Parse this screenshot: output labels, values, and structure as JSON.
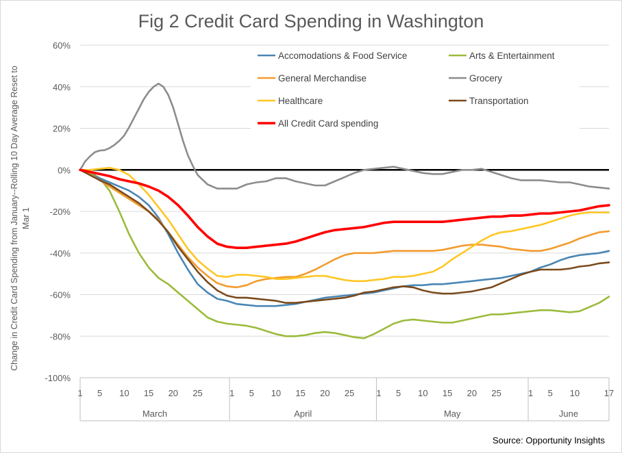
{
  "chart_data": {
    "type": "line",
    "title": "Fig 2 Credit Card Spending in Washington",
    "ylabel_lines": [
      "Change in Credit Card Spending  from January--Rolling 10 Day Average Reset to",
      "Mar 1"
    ],
    "ylim": [
      -100,
      60
    ],
    "yticks": [
      60,
      40,
      20,
      0,
      -20,
      -40,
      -60,
      -80,
      -100
    ],
    "ytick_labels": [
      "60%",
      "40%",
      "20%",
      "0%",
      "-20%",
      "-40%",
      "-60%",
      "-80%",
      "-100%"
    ],
    "x_day_range": [
      1,
      109
    ],
    "x_tick_labels": [
      {
        "day": 1,
        "label": "1"
      },
      {
        "day": 5,
        "label": "5"
      },
      {
        "day": 10,
        "label": "10"
      },
      {
        "day": 15,
        "label": "15"
      },
      {
        "day": 20,
        "label": "20"
      },
      {
        "day": 25,
        "label": "25"
      },
      {
        "day": 32,
        "label": "1"
      },
      {
        "day": 36,
        "label": "5"
      },
      {
        "day": 41,
        "label": "10"
      },
      {
        "day": 46,
        "label": "15"
      },
      {
        "day": 51,
        "label": "20"
      },
      {
        "day": 56,
        "label": "25"
      },
      {
        "day": 62,
        "label": "1"
      },
      {
        "day": 66,
        "label": "5"
      },
      {
        "day": 71,
        "label": "10"
      },
      {
        "day": 76,
        "label": "15"
      },
      {
        "day": 81,
        "label": "20"
      },
      {
        "day": 86,
        "label": "25"
      },
      {
        "day": 93,
        "label": "1"
      },
      {
        "day": 97,
        "label": "5"
      },
      {
        "day": 102,
        "label": "10"
      },
      {
        "day": 109,
        "label": "17"
      }
    ],
    "months": [
      {
        "label": "March",
        "start": 1,
        "end": 31
      },
      {
        "label": "April",
        "start": 32,
        "end": 61
      },
      {
        "label": "May",
        "start": 62,
        "end": 92
      },
      {
        "label": "June",
        "start": 93,
        "end": 109
      }
    ],
    "grid": true,
    "zero_line": true,
    "legend": "top-right",
    "source": "Source: Opportunity Insights",
    "series": [
      {
        "name": "Accomodations & Food Service",
        "color": "#4a86b4",
        "width": 2.6,
        "x": [
          1,
          3,
          5,
          7,
          9,
          11,
          13,
          15,
          17,
          19,
          21,
          23,
          25,
          27,
          29,
          31,
          33,
          35,
          37,
          39,
          41,
          43,
          45,
          47,
          49,
          51,
          53,
          55,
          57,
          59,
          61,
          63,
          65,
          67,
          69,
          71,
          73,
          75,
          77,
          79,
          81,
          83,
          85,
          87,
          89,
          91,
          93,
          95,
          97,
          99,
          101,
          103,
          105,
          107,
          109
        ],
        "y": [
          0,
          -2,
          -4,
          -6,
          -8,
          -10,
          -13,
          -17,
          -23,
          -31,
          -40,
          -48,
          -55,
          -59,
          -62,
          -63,
          -64.5,
          -65,
          -65.5,
          -65.5,
          -65.5,
          -65,
          -64.5,
          -63.5,
          -62.5,
          -61.5,
          -61,
          -60.5,
          -60,
          -59.5,
          -59,
          -58,
          -57,
          -56,
          -55.5,
          -55.5,
          -55,
          -55,
          -54.5,
          -54,
          -53.5,
          -53,
          -52.5,
          -52,
          -51,
          -50,
          -49,
          -47,
          -45.5,
          -43.5,
          -42,
          -41,
          -40.5,
          -40,
          -39
        ]
      },
      {
        "name": "Arts & Entertainment",
        "color": "#9bbb3b",
        "width": 2.6,
        "x": [
          1,
          3,
          5,
          7,
          9,
          11,
          13,
          15,
          17,
          19,
          21,
          23,
          25,
          27,
          29,
          31,
          33,
          35,
          37,
          39,
          41,
          43,
          45,
          47,
          49,
          51,
          53,
          55,
          57,
          59,
          61,
          63,
          65,
          67,
          69,
          71,
          73,
          75,
          77,
          79,
          81,
          83,
          85,
          87,
          89,
          91,
          93,
          95,
          97,
          99,
          101,
          103,
          105,
          107,
          109
        ],
        "y": [
          0,
          -1,
          -4,
          -10,
          -20,
          -31,
          -40,
          -47,
          -52,
          -55,
          -59,
          -63,
          -67,
          -71,
          -73,
          -74,
          -74.5,
          -75,
          -76,
          -77.5,
          -79,
          -80,
          -80,
          -79.5,
          -78.5,
          -78,
          -78.5,
          -79.5,
          -80.5,
          -81,
          -79,
          -76.5,
          -74,
          -72.5,
          -72,
          -72.5,
          -73,
          -73.5,
          -73.5,
          -72.5,
          -71.5,
          -70.5,
          -69.5,
          -69.5,
          -69,
          -68.5,
          -68,
          -67.5,
          -67.5,
          -68,
          -68.5,
          -68,
          -66,
          -64,
          -61
        ]
      },
      {
        "name": "General Merchandise",
        "color": "#f29b2d",
        "width": 2.6,
        "x": [
          1,
          3,
          5,
          7,
          9,
          11,
          13,
          15,
          17,
          19,
          21,
          23,
          25,
          27,
          29,
          31,
          33,
          35,
          37,
          39,
          41,
          43,
          45,
          47,
          49,
          51,
          53,
          55,
          57,
          59,
          61,
          63,
          65,
          67,
          69,
          71,
          73,
          75,
          77,
          79,
          81,
          83,
          85,
          87,
          89,
          91,
          93,
          95,
          97,
          99,
          101,
          103,
          105,
          107,
          109
        ],
        "y": [
          0,
          -2,
          -5,
          -8,
          -11,
          -14,
          -17,
          -20,
          -24,
          -30,
          -36,
          -42,
          -47,
          -51,
          -54.5,
          -56,
          -56.5,
          -55.5,
          -53.5,
          -52.5,
          -52,
          -51.5,
          -51.5,
          -50,
          -48,
          -45.5,
          -43,
          -41,
          -40,
          -40,
          -40,
          -39.5,
          -39,
          -39,
          -39,
          -39,
          -39,
          -38.5,
          -37.5,
          -36.5,
          -36,
          -36,
          -36.5,
          -37,
          -38,
          -38.5,
          -39,
          -39,
          -38,
          -36.5,
          -35,
          -33,
          -31.5,
          -30,
          -29.5
        ]
      },
      {
        "name": "Grocery",
        "color": "#8c8c8c",
        "width": 2.6,
        "x": [
          1,
          2,
          3,
          4,
          5,
          6,
          7,
          8,
          9,
          10,
          11,
          12,
          13,
          14,
          15,
          16,
          17,
          18,
          19,
          20,
          21,
          22,
          23,
          24,
          25,
          27,
          29,
          31,
          33,
          35,
          37,
          39,
          41,
          43,
          45,
          47,
          49,
          51,
          53,
          55,
          57,
          59,
          61,
          63,
          65,
          67,
          69,
          71,
          73,
          75,
          77,
          79,
          81,
          83,
          85,
          87,
          89,
          91,
          93,
          95,
          97,
          99,
          101,
          103,
          105,
          107,
          109
        ],
        "y": [
          0,
          4,
          6.5,
          8.5,
          9.3,
          9.5,
          10.5,
          12,
          14,
          16.5,
          20.5,
          25,
          29.5,
          34,
          37.5,
          40,
          41.5,
          40,
          36,
          30,
          22,
          14,
          7,
          2,
          -2.5,
          -7,
          -9,
          -9,
          -9,
          -7,
          -6,
          -5.5,
          -4,
          -4,
          -5.5,
          -6.5,
          -7.5,
          -7.5,
          -5.5,
          -3.5,
          -1.5,
          0,
          0.5,
          1,
          1.5,
          0.5,
          -0.5,
          -1.5,
          -2,
          -2,
          -1,
          0,
          0,
          0.5,
          -1,
          -2.5,
          -4,
          -5,
          -5,
          -5,
          -5.5,
          -6,
          -6,
          -7,
          -8,
          -8.5,
          -9
        ]
      },
      {
        "name": "Healthcare",
        "color": "#ffc623",
        "width": 2.6,
        "x": [
          1,
          3,
          5,
          7,
          9,
          11,
          13,
          15,
          17,
          19,
          21,
          23,
          25,
          27,
          29,
          31,
          33,
          35,
          37,
          39,
          41,
          43,
          45,
          47,
          49,
          51,
          53,
          55,
          57,
          59,
          61,
          63,
          65,
          67,
          69,
          71,
          73,
          75,
          77,
          79,
          81,
          83,
          85,
          87,
          89,
          91,
          93,
          95,
          97,
          99,
          101,
          103,
          105,
          107,
          109
        ],
        "y": [
          0,
          0,
          0.5,
          1,
          0,
          -2.5,
          -7,
          -12,
          -18,
          -24,
          -31,
          -38,
          -43.5,
          -47.5,
          -51,
          -51.5,
          -50.5,
          -50.5,
          -51,
          -51.5,
          -52.5,
          -52.5,
          -52,
          -51.5,
          -51,
          -51,
          -52,
          -53,
          -53.5,
          -53.5,
          -53,
          -52.5,
          -51.5,
          -51.5,
          -51,
          -50,
          -49,
          -46.5,
          -43,
          -40,
          -37,
          -34,
          -31.5,
          -30,
          -29.5,
          -28.5,
          -27.5,
          -26.5,
          -25,
          -23.5,
          -22,
          -21,
          -20.5,
          -20.5,
          -20.5
        ]
      },
      {
        "name": "Transportation",
        "color": "#7a4a1c",
        "width": 2.6,
        "x": [
          1,
          3,
          5,
          7,
          9,
          11,
          13,
          15,
          17,
          19,
          21,
          23,
          25,
          27,
          29,
          31,
          33,
          35,
          37,
          39,
          41,
          43,
          45,
          47,
          49,
          51,
          53,
          55,
          57,
          59,
          61,
          63,
          65,
          67,
          69,
          71,
          73,
          75,
          77,
          79,
          81,
          83,
          85,
          87,
          89,
          91,
          93,
          95,
          97,
          99,
          101,
          103,
          105,
          107,
          109
        ],
        "y": [
          0,
          -2.5,
          -5,
          -7,
          -10,
          -13,
          -16,
          -20,
          -24.5,
          -30,
          -37,
          -43,
          -49,
          -54,
          -58,
          -60.5,
          -61.5,
          -61.5,
          -62,
          -62.5,
          -63,
          -64,
          -64,
          -63.5,
          -63,
          -62.5,
          -62,
          -61.5,
          -60.5,
          -59,
          -58.5,
          -57.5,
          -56.5,
          -56,
          -56.5,
          -58,
          -59,
          -59.5,
          -59.5,
          -59,
          -58.5,
          -57.5,
          -56.5,
          -54.5,
          -52.5,
          -50.5,
          -49,
          -48,
          -48,
          -48,
          -47.5,
          -46.5,
          -46,
          -45,
          -44.5
        ]
      },
      {
        "name": "All Credit Card spending",
        "color": "#ff0000",
        "width": 3.6,
        "x": [
          1,
          3,
          5,
          7,
          9,
          11,
          13,
          15,
          17,
          19,
          21,
          23,
          25,
          27,
          29,
          31,
          33,
          35,
          37,
          39,
          41,
          43,
          45,
          47,
          49,
          51,
          53,
          55,
          57,
          59,
          61,
          63,
          65,
          67,
          69,
          71,
          73,
          75,
          77,
          79,
          81,
          83,
          85,
          87,
          89,
          91,
          93,
          95,
          97,
          99,
          101,
          103,
          105,
          107,
          109
        ],
        "y": [
          0,
          -1,
          -2,
          -3,
          -4.5,
          -5.5,
          -6.5,
          -8,
          -10,
          -13,
          -17,
          -22,
          -27.5,
          -32,
          -35.5,
          -37,
          -37.5,
          -37.5,
          -37,
          -36.5,
          -36,
          -35.5,
          -34.5,
          -33,
          -31.5,
          -30,
          -29,
          -28.5,
          -28,
          -27.5,
          -26.5,
          -25.5,
          -25,
          -25,
          -25,
          -25,
          -25,
          -25,
          -24.5,
          -24,
          -23.5,
          -23,
          -22.5,
          -22.5,
          -22,
          -22,
          -21.5,
          -21,
          -21,
          -20.5,
          -20,
          -19.5,
          -18.5,
          -17.5,
          -17
        ]
      }
    ]
  }
}
